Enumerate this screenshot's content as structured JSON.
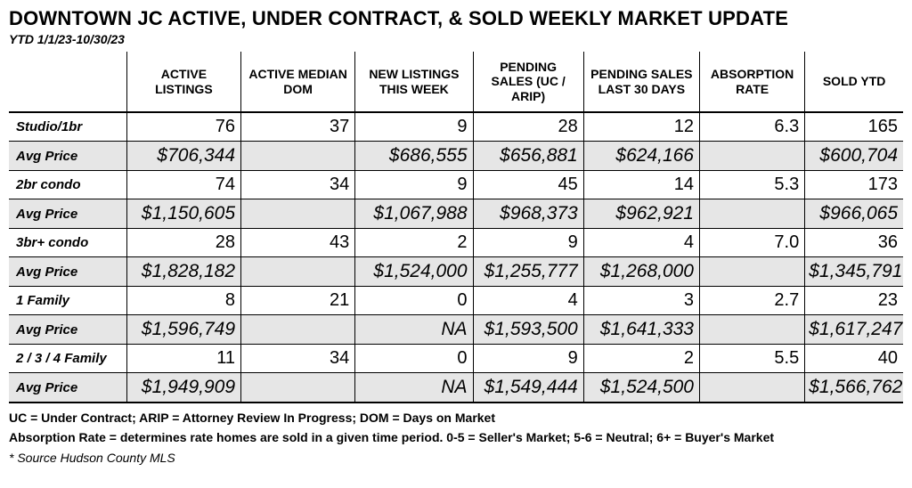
{
  "header": {
    "title": "DOWNTOWN JC ACTIVE, UNDER CONTRACT, & SOLD WEEKLY MARKET UPDATE",
    "subtitle": "YTD 1/1/23-10/30/23"
  },
  "columns": [
    "",
    "ACTIVE LISTINGS",
    "ACTIVE MEDIAN DOM",
    "NEW LISTINGS THIS WEEK",
    "PENDING SALES (UC / ARIP)",
    "PENDING SALES LAST 30 DAYS",
    "ABSORPTION RATE",
    "SOLD YTD"
  ],
  "groups": [
    {
      "label": "Studio/1br",
      "vals": [
        "76",
        "37",
        "9",
        "28",
        "12",
        "6.3",
        "165"
      ],
      "price": [
        "$706,344",
        "",
        "$686,555",
        "$656,881",
        "$624,166",
        "",
        "$600,704"
      ]
    },
    {
      "label": "2br condo",
      "vals": [
        "74",
        "34",
        "9",
        "45",
        "14",
        "5.3",
        "173"
      ],
      "price": [
        "$1,150,605",
        "",
        "$1,067,988",
        "$968,373",
        "$962,921",
        "",
        "$966,065"
      ]
    },
    {
      "label": "3br+ condo",
      "vals": [
        "28",
        "43",
        "2",
        "9",
        "4",
        "7.0",
        "36"
      ],
      "price": [
        "$1,828,182",
        "",
        "$1,524,000",
        "$1,255,777",
        "$1,268,000",
        "",
        "$1,345,791"
      ]
    },
    {
      "label": "1 Family",
      "vals": [
        "8",
        "21",
        "0",
        "4",
        "3",
        "2.7",
        "23"
      ],
      "price": [
        "$1,596,749",
        "",
        "NA",
        "$1,593,500",
        "$1,641,333",
        "",
        "$1,617,247"
      ]
    },
    {
      "label": "2 / 3 / 4 Family",
      "vals": [
        "11",
        "34",
        "0",
        "9",
        "2",
        "5.5",
        "40"
      ],
      "price": [
        "$1,949,909",
        "",
        "NA",
        "$1,549,444",
        "$1,524,500",
        "",
        "$1,566,762"
      ]
    }
  ],
  "avg_label": "Avg Price",
  "footer": {
    "l1": "UC = Under Contract; ARIP = Attorney Review In Progress; DOM = Days on Market",
    "l2": "Absorption Rate = determines rate homes are sold in a given time period.  0-5 = Seller's Market; 5-6 = Neutral; 6+ = Buyer's Market",
    "src": "* Source Hudson County MLS"
  },
  "style": {
    "shade_color": "#e6e6e6",
    "border_color": "#000000",
    "background": "#ffffff",
    "title_fontsize": 22,
    "header_fontsize": 14,
    "body_fontsize": 20,
    "label_fontsize": 15,
    "footer_fontsize": 14
  }
}
